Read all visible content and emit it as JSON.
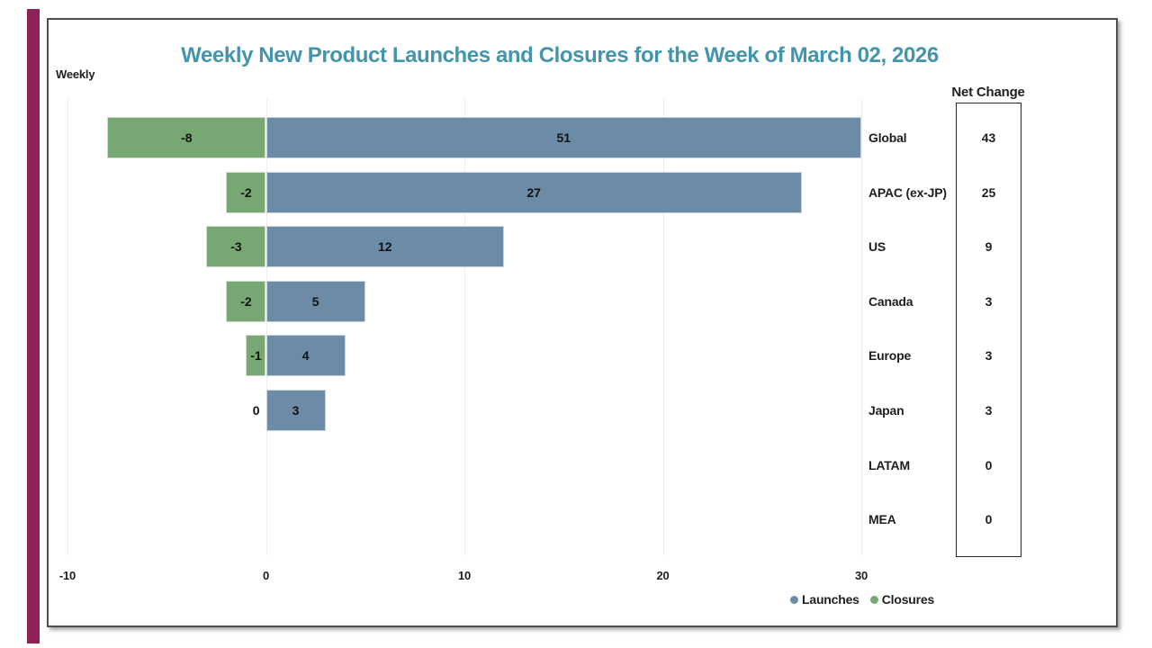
{
  "header": {
    "corner_label": "Weekly",
    "title": "Weekly New Product Launches and Closures for the Week of March 02, 2026"
  },
  "net_column": {
    "header": "Net Change"
  },
  "legend": {
    "items": [
      {
        "label": "Launches",
        "color": "#6b8ba6"
      },
      {
        "label": "Closures",
        "color": "#77a873"
      }
    ]
  },
  "colors": {
    "accent_stripe": "#8e2157",
    "title": "#4295ab",
    "launches_bar": "#6b8ba6",
    "closures_bar": "#77a873",
    "gridline": "#ececec",
    "text": "#1f1f1f"
  },
  "chart_data": {
    "type": "bar",
    "orientation": "horizontal",
    "title": "Weekly New Product Launches and Closures for the Week of March 02, 2026",
    "categories": [
      "Global",
      "APAC (ex-JP)",
      "US",
      "Canada",
      "Europe",
      "Japan",
      "LATAM",
      "MEA"
    ],
    "series": [
      {
        "name": "Launches",
        "color": "#6b8ba6",
        "values": [
          51,
          27,
          12,
          5,
          4,
          3,
          0,
          0
        ]
      },
      {
        "name": "Closures",
        "color": "#77a873",
        "values": [
          -8,
          -2,
          -3,
          -2,
          -1,
          0,
          0,
          0
        ]
      }
    ],
    "net_change": [
      43,
      25,
      9,
      3,
      3,
      3,
      0,
      0
    ],
    "value_labels": [
      "51",
      "27",
      "12",
      "5",
      "4",
      "3",
      "",
      ""
    ],
    "closure_labels": [
      "-8",
      "-2",
      "-3",
      "-2",
      "-1",
      "0",
      "",
      ""
    ],
    "xlabel": "",
    "ylabel": "",
    "xlim": [
      -10,
      30
    ],
    "x_ticks": [
      -10,
      0,
      10,
      20,
      30
    ],
    "bars_clipped_at_xlim_max": true,
    "grid": "vertical",
    "legend_position": "bottom-right"
  }
}
